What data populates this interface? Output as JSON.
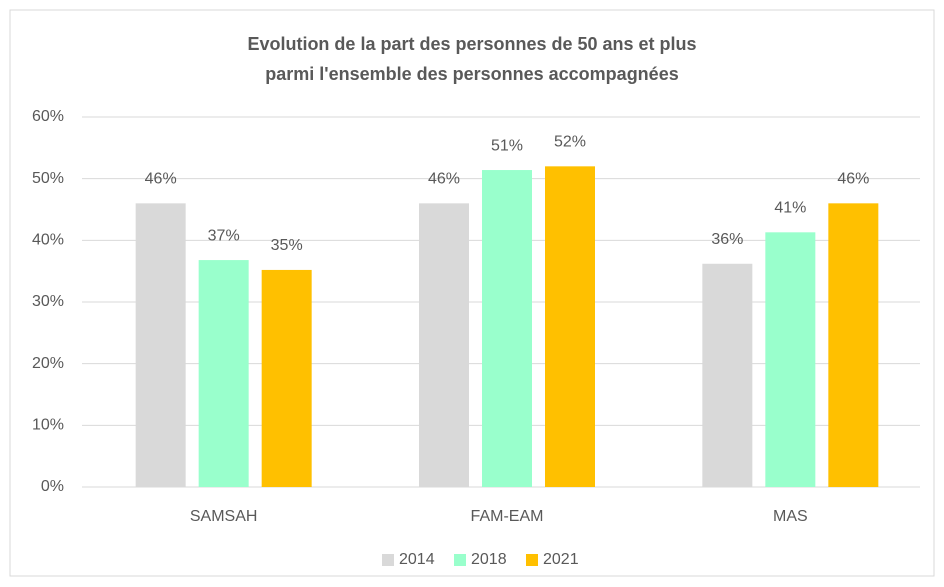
{
  "chart_data": {
    "type": "bar",
    "title": [
      "Evolution de la part des personnes de 50 ans et plus",
      "parmi l'ensemble des personnes accompagnées"
    ],
    "categories": [
      "SAMSAH",
      "FAM-EAM",
      "MAS"
    ],
    "series": [
      {
        "name": "2014",
        "color": "#d9d9d9",
        "values": [
          46,
          46,
          36.2
        ],
        "value_labels": [
          "46%",
          "46%",
          "36%"
        ]
      },
      {
        "name": "2018",
        "color": "#99ffcc",
        "values": [
          36.8,
          51.4,
          41.3
        ],
        "value_labels": [
          "37%",
          "51%",
          "41%"
        ]
      },
      {
        "name": "2021",
        "color": "#ffc000",
        "values": [
          35.2,
          52,
          46
        ],
        "value_labels": [
          "35%",
          "52%",
          "46%"
        ]
      }
    ],
    "ylim": [
      0,
      60
    ],
    "yticks": [
      {
        "value": 0,
        "label": "0%"
      },
      {
        "value": 10,
        "label": "10%"
      },
      {
        "value": 20,
        "label": "20%"
      },
      {
        "value": 30,
        "label": "30%"
      },
      {
        "value": 40,
        "label": "40%"
      },
      {
        "value": 50,
        "label": "50%"
      },
      {
        "value": 60,
        "label": "60%"
      }
    ],
    "grid": true,
    "legend": "bottom"
  }
}
